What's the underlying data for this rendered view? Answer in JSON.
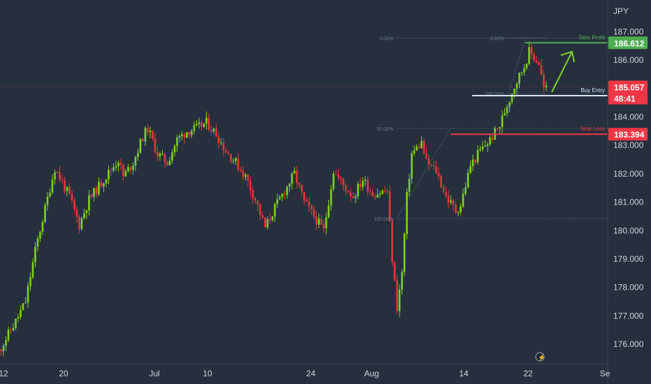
{
  "currency_label": "JPY",
  "colors": {
    "background": "#262f3d",
    "up": "#7ed321",
    "down": "#e53935",
    "take_profit": "#4caf50",
    "stop_loss": "#f23645",
    "buy_entry": "#d9e6f5",
    "current_price": "#f23645",
    "fib": "#6a7a8c"
  },
  "icons": {
    "replay": "lightning-icon"
  },
  "chart_data": {
    "type": "candlestick",
    "ylim": [
      175.5,
      187.3
    ],
    "yticks": [
      "187.000",
      "186.000",
      "185.000",
      "184.000",
      "183.000",
      "182.000",
      "181.000",
      "180.000",
      "179.000",
      "178.000",
      "177.000",
      "176.000"
    ],
    "xticks": [
      "12",
      "20",
      "Jul",
      "10",
      "24",
      "Aug",
      "14",
      "22",
      "Se"
    ],
    "grid": false,
    "candle_count": 214,
    "price_path": [
      [
        0,
        175.6
      ],
      [
        8,
        176.8
      ],
      [
        12,
        177.5
      ],
      [
        16,
        179.3
      ],
      [
        22,
        181.5
      ],
      [
        24,
        182.2
      ],
      [
        30,
        181.2
      ],
      [
        34,
        180.2
      ],
      [
        38,
        181.1
      ],
      [
        44,
        181.8
      ],
      [
        50,
        182.5
      ],
      [
        52,
        181.9
      ],
      [
        56,
        182.4
      ],
      [
        60,
        183.3
      ],
      [
        62,
        183.6
      ],
      [
        66,
        182.7
      ],
      [
        70,
        182.4
      ],
      [
        74,
        183.2
      ],
      [
        78,
        183.5
      ],
      [
        82,
        183.6
      ],
      [
        86,
        183.8
      ],
      [
        90,
        183.4
      ],
      [
        94,
        182.8
      ],
      [
        98,
        182.4
      ],
      [
        102,
        181.9
      ],
      [
        106,
        181.1
      ],
      [
        110,
        180.1
      ],
      [
        114,
        180.8
      ],
      [
        118,
        181.4
      ],
      [
        122,
        182.0
      ],
      [
        126,
        181.0
      ],
      [
        130,
        180.5
      ],
      [
        134,
        180.0
      ],
      [
        138,
        182.1
      ],
      [
        142,
        181.6
      ],
      [
        146,
        181.2
      ],
      [
        150,
        181.8
      ],
      [
        154,
        181.3
      ],
      [
        160,
        181.4
      ],
      [
        162,
        179.0
      ],
      [
        164,
        177.3
      ],
      [
        166,
        178.5
      ],
      [
        168,
        181.2
      ],
      [
        170,
        182.7
      ],
      [
        174,
        183.1
      ],
      [
        176,
        182.4
      ],
      [
        180,
        182.1
      ],
      [
        184,
        181.2
      ],
      [
        188,
        180.7
      ],
      [
        190,
        180.9
      ],
      [
        194,
        182.3
      ],
      [
        198,
        182.8
      ],
      [
        202,
        183.2
      ],
      [
        206,
        183.7
      ],
      [
        208,
        184.2
      ],
      [
        212,
        185.1
      ],
      [
        216,
        185.8
      ],
      [
        218,
        186.3
      ],
      [
        222,
        185.9
      ],
      [
        224,
        185.0
      ]
    ],
    "levels": {
      "take_profit": {
        "label": "Take Profit",
        "value": 186.612,
        "text": "186.612"
      },
      "buy_entry": {
        "label": "Buy Entry",
        "value": 184.75
      },
      "stop_loss": {
        "label": "Stop Loss",
        "value": 183.394,
        "text": "183.394"
      },
      "current_price": {
        "value": 185.057,
        "text": "185.057",
        "countdown": "48:41"
      }
    },
    "fib_levels": [
      {
        "label": "0.00%",
        "value": 186.78
      },
      {
        "label": "50.00%",
        "value": 183.6
      },
      {
        "label": "100.00%",
        "value": 180.42
      }
    ],
    "fib_small": [
      {
        "label": "0.00%",
        "value": 186.78
      },
      {
        "label": "100.00%",
        "value": 184.82
      }
    ]
  }
}
